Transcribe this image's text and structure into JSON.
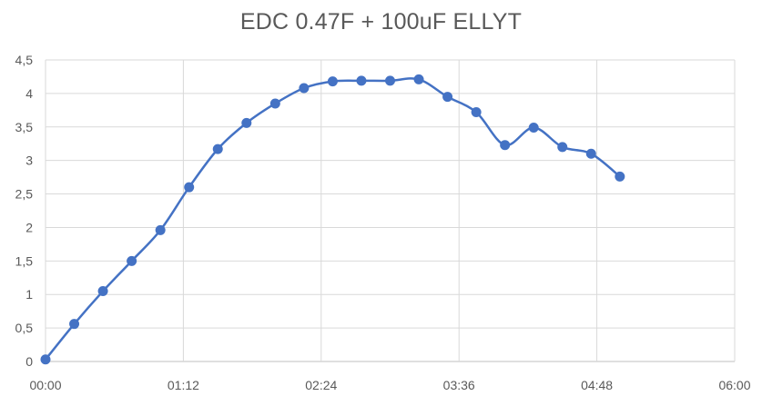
{
  "chart_data": {
    "type": "line",
    "title": "EDC 0.47F + 100uF ELLYT",
    "xlabel": "",
    "ylabel": "",
    "x_unit": "mm:ss",
    "xlim": [
      "00:00",
      "06:00"
    ],
    "ylim": [
      0,
      4.5
    ],
    "x_ticks": [
      "00:00",
      "01:12",
      "02:24",
      "03:36",
      "04:48",
      "06:00"
    ],
    "y_ticks": [
      "0",
      "0,5",
      "1",
      "1,5",
      "2",
      "2,5",
      "3",
      "3,5",
      "4",
      "4,5"
    ],
    "grid": true,
    "legend": "none",
    "line_color": "#4472C4",
    "series": [
      {
        "x": [
          "00:00",
          "00:15",
          "00:30",
          "00:45",
          "01:00",
          "01:15",
          "01:30",
          "01:45",
          "02:00",
          "02:15",
          "02:30",
          "02:45",
          "03:00",
          "03:15",
          "03:30",
          "03:45",
          "04:00",
          "04:15",
          "04:30",
          "04:45",
          "05:00"
        ],
        "values": [
          0.03,
          0.56,
          1.05,
          1.5,
          1.96,
          2.6,
          3.17,
          3.56,
          3.85,
          4.08,
          4.18,
          4.19,
          4.19,
          4.21,
          3.95,
          3.72,
          3.23,
          3.49,
          3.2,
          3.1,
          2.76
        ]
      }
    ]
  }
}
